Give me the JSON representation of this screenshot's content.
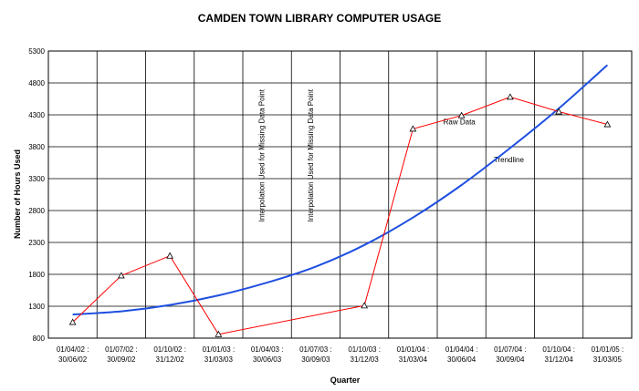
{
  "chart_data": {
    "type": "line",
    "title": "CAMDEN TOWN LIBRARY COMPUTER USAGE",
    "xlabel": "Quarter",
    "ylabel": "Number of Hours Used",
    "categories": [
      [
        "01/04/02 :",
        "30/06/02"
      ],
      [
        "01/07/02 :",
        "30/09/02"
      ],
      [
        "01/10/02 :",
        "31/12/02"
      ],
      [
        "01/01/03 :",
        "31/03/03"
      ],
      [
        "01/04/03 :",
        "30/06/03"
      ],
      [
        "01/07/03 :",
        "30/09/03"
      ],
      [
        "01/10/03 :",
        "31/12/03"
      ],
      [
        "01/01/04 :",
        "31/03/04"
      ],
      [
        "01/04/04 :",
        "30/06/04"
      ],
      [
        "01/07/04 :",
        "30/09/04"
      ],
      [
        "01/10/04 :",
        "31/12/04"
      ],
      [
        "01/01/05 :",
        "31/03/05"
      ]
    ],
    "yticks": [
      800,
      1300,
      1800,
      2300,
      2800,
      3300,
      3800,
      4300,
      4800,
      5300
    ],
    "ylim": [
      800,
      5300
    ],
    "grid": true,
    "series": [
      {
        "name": "Raw Data",
        "color": "#ff0000",
        "marker": "triangle",
        "points": [
          {
            "x": 0,
            "y": 1050
          },
          {
            "x": 1,
            "y": 1780
          },
          {
            "x": 2,
            "y": 2090
          },
          {
            "x": 3,
            "y": 860
          },
          {
            "x": 6,
            "y": 1310
          },
          {
            "x": 7,
            "y": 4080
          },
          {
            "x": 8,
            "y": 4290
          },
          {
            "x": 9,
            "y": 4580
          },
          {
            "x": 10,
            "y": 4350
          },
          {
            "x": 11,
            "y": 4150
          }
        ]
      },
      {
        "name": "Trendline",
        "color": "#1f4fe0",
        "points": [
          {
            "x": 0,
            "y": 1170
          },
          {
            "x": 1,
            "y": 1220
          },
          {
            "x": 2,
            "y": 1320
          },
          {
            "x": 3,
            "y": 1470
          },
          {
            "x": 4,
            "y": 1670
          },
          {
            "x": 5,
            "y": 1920
          },
          {
            "x": 6,
            "y": 2260
          },
          {
            "x": 7,
            "y": 2690
          },
          {
            "x": 8,
            "y": 3200
          },
          {
            "x": 9,
            "y": 3780
          },
          {
            "x": 10,
            "y": 4400
          },
          {
            "x": 11,
            "y": 5080
          }
        ]
      }
    ],
    "annotations": [
      {
        "text": "Interpolation Used for Missing Data Point",
        "x": 4,
        "orientation": "vertical"
      },
      {
        "text": "Interpolation Used for Missing Data Point",
        "x": 5,
        "orientation": "vertical"
      },
      {
        "text": "Raw Data",
        "x": 8,
        "y": 4150
      },
      {
        "text": "Trendline",
        "x": 9,
        "y": 3560
      }
    ]
  }
}
